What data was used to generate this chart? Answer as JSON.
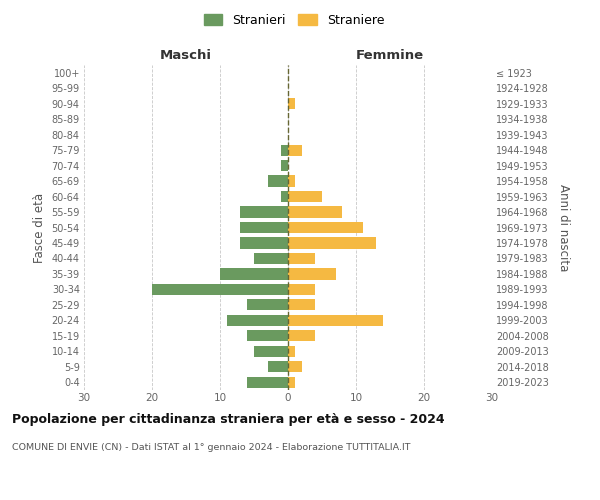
{
  "age_groups": [
    "0-4",
    "5-9",
    "10-14",
    "15-19",
    "20-24",
    "25-29",
    "30-34",
    "35-39",
    "40-44",
    "45-49",
    "50-54",
    "55-59",
    "60-64",
    "65-69",
    "70-74",
    "75-79",
    "80-84",
    "85-89",
    "90-94",
    "95-99",
    "100+"
  ],
  "birth_years": [
    "2019-2023",
    "2014-2018",
    "2009-2013",
    "2004-2008",
    "1999-2003",
    "1994-1998",
    "1989-1993",
    "1984-1988",
    "1979-1983",
    "1974-1978",
    "1969-1973",
    "1964-1968",
    "1959-1963",
    "1954-1958",
    "1949-1953",
    "1944-1948",
    "1939-1943",
    "1934-1938",
    "1929-1933",
    "1924-1928",
    "≤ 1923"
  ],
  "males": [
    6,
    3,
    5,
    6,
    9,
    6,
    20,
    10,
    5,
    7,
    7,
    7,
    1,
    3,
    1,
    1,
    0,
    0,
    0,
    0,
    0
  ],
  "females": [
    1,
    2,
    1,
    4,
    14,
    4,
    4,
    7,
    4,
    13,
    11,
    8,
    5,
    1,
    0,
    2,
    0,
    0,
    1,
    0,
    0
  ],
  "male_color": "#6a9a5f",
  "female_color": "#f5b942",
  "background_color": "#ffffff",
  "grid_color": "#c8c8c8",
  "center_line_color": "#666633",
  "xlim": 30,
  "title": "Popolazione per cittadinanza straniera per età e sesso - 2024",
  "subtitle": "COMUNE DI ENVIE (CN) - Dati ISTAT al 1° gennaio 2024 - Elaborazione TUTTITALIA.IT",
  "xlabel_left": "Maschi",
  "xlabel_right": "Femmine",
  "ylabel_left": "Fasce di età",
  "ylabel_right": "Anni di nascita",
  "legend_male": "Stranieri",
  "legend_female": "Straniere"
}
